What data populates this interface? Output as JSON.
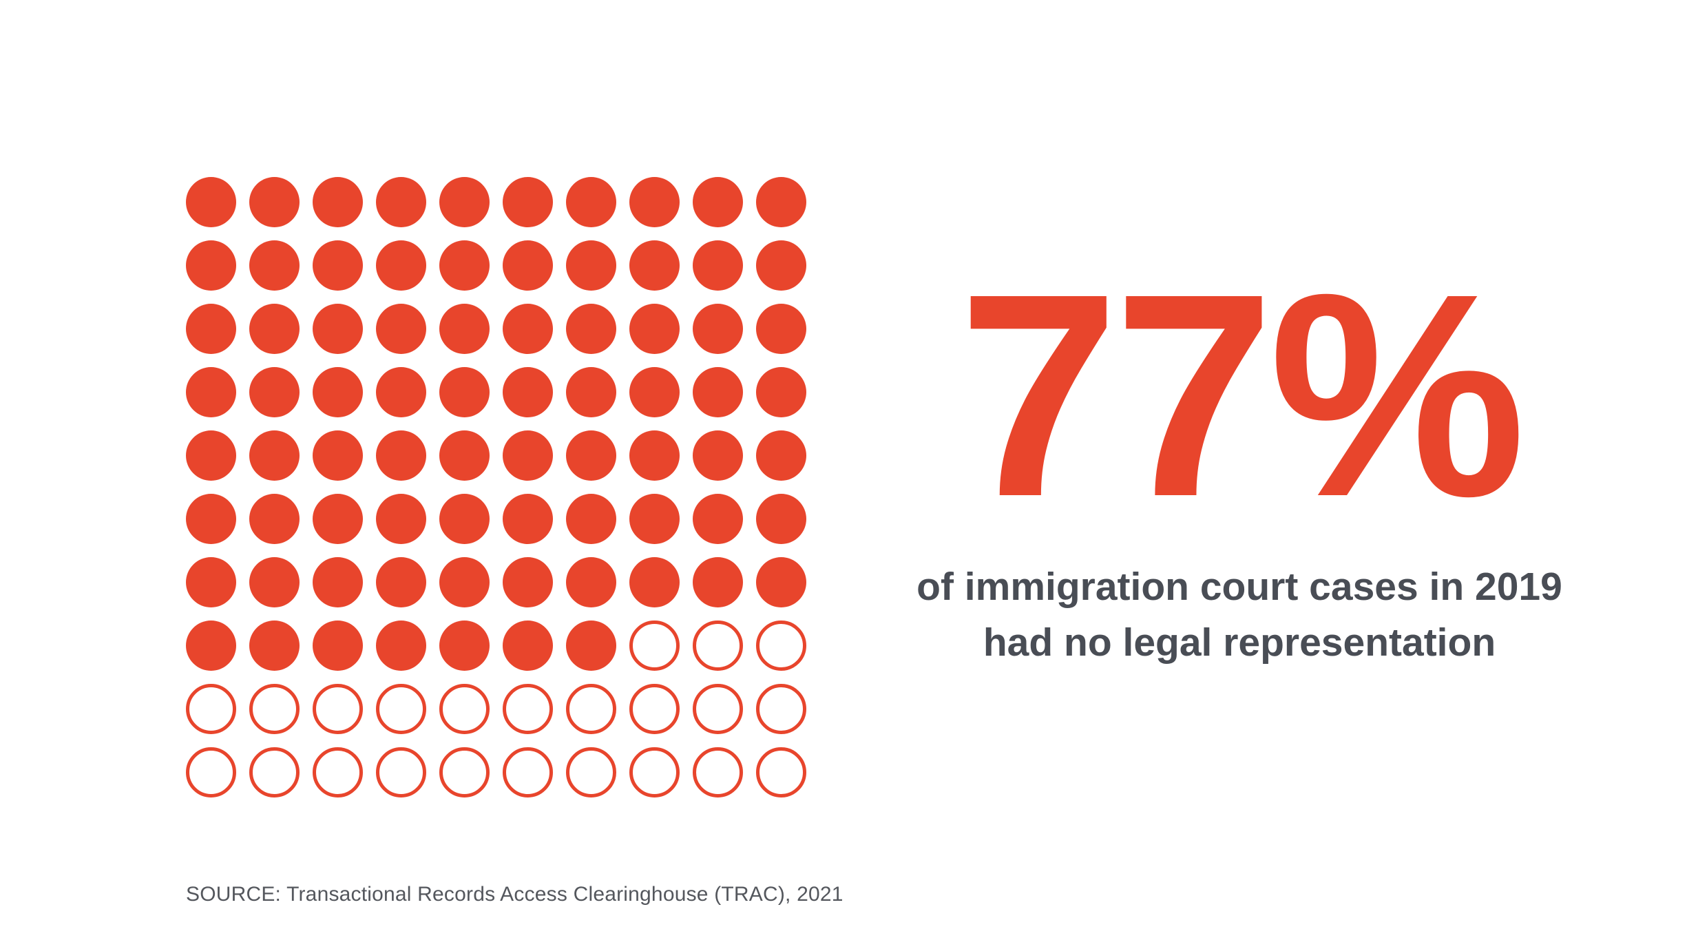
{
  "page": {
    "background": "#FFFFFF"
  },
  "colors": {
    "accent": "#E8452C",
    "caption_text": "#494D55",
    "source_text": "#54575D",
    "background": "#FFFFFF"
  },
  "stat": {
    "value": "77%",
    "caption_lines": [
      "of immigration court cases in 2019",
      "had no legal representation"
    ]
  },
  "source": {
    "label": "SOURCE: Transactional Records Access Clearinghouse (TRAC), 2021"
  },
  "chart_data": {
    "type": "waffle",
    "rows": 10,
    "cols": 10,
    "total_units": 100,
    "filled_units": 77,
    "empty_units": 23,
    "unit_value_percent": 1,
    "percent_shown": 77,
    "fill_order": "row-major-from-top-left",
    "filled_color": "#E8452C",
    "empty_fill_color": "#FFFFFF",
    "empty_stroke_color": "#E8452C",
    "grid_on": false,
    "legend": null,
    "title": "77%",
    "caption": "of immigration court cases in 2019 had no legal representation",
    "source": "SOURCE: Transactional Records Access Clearinghouse (TRAC), 2021"
  }
}
